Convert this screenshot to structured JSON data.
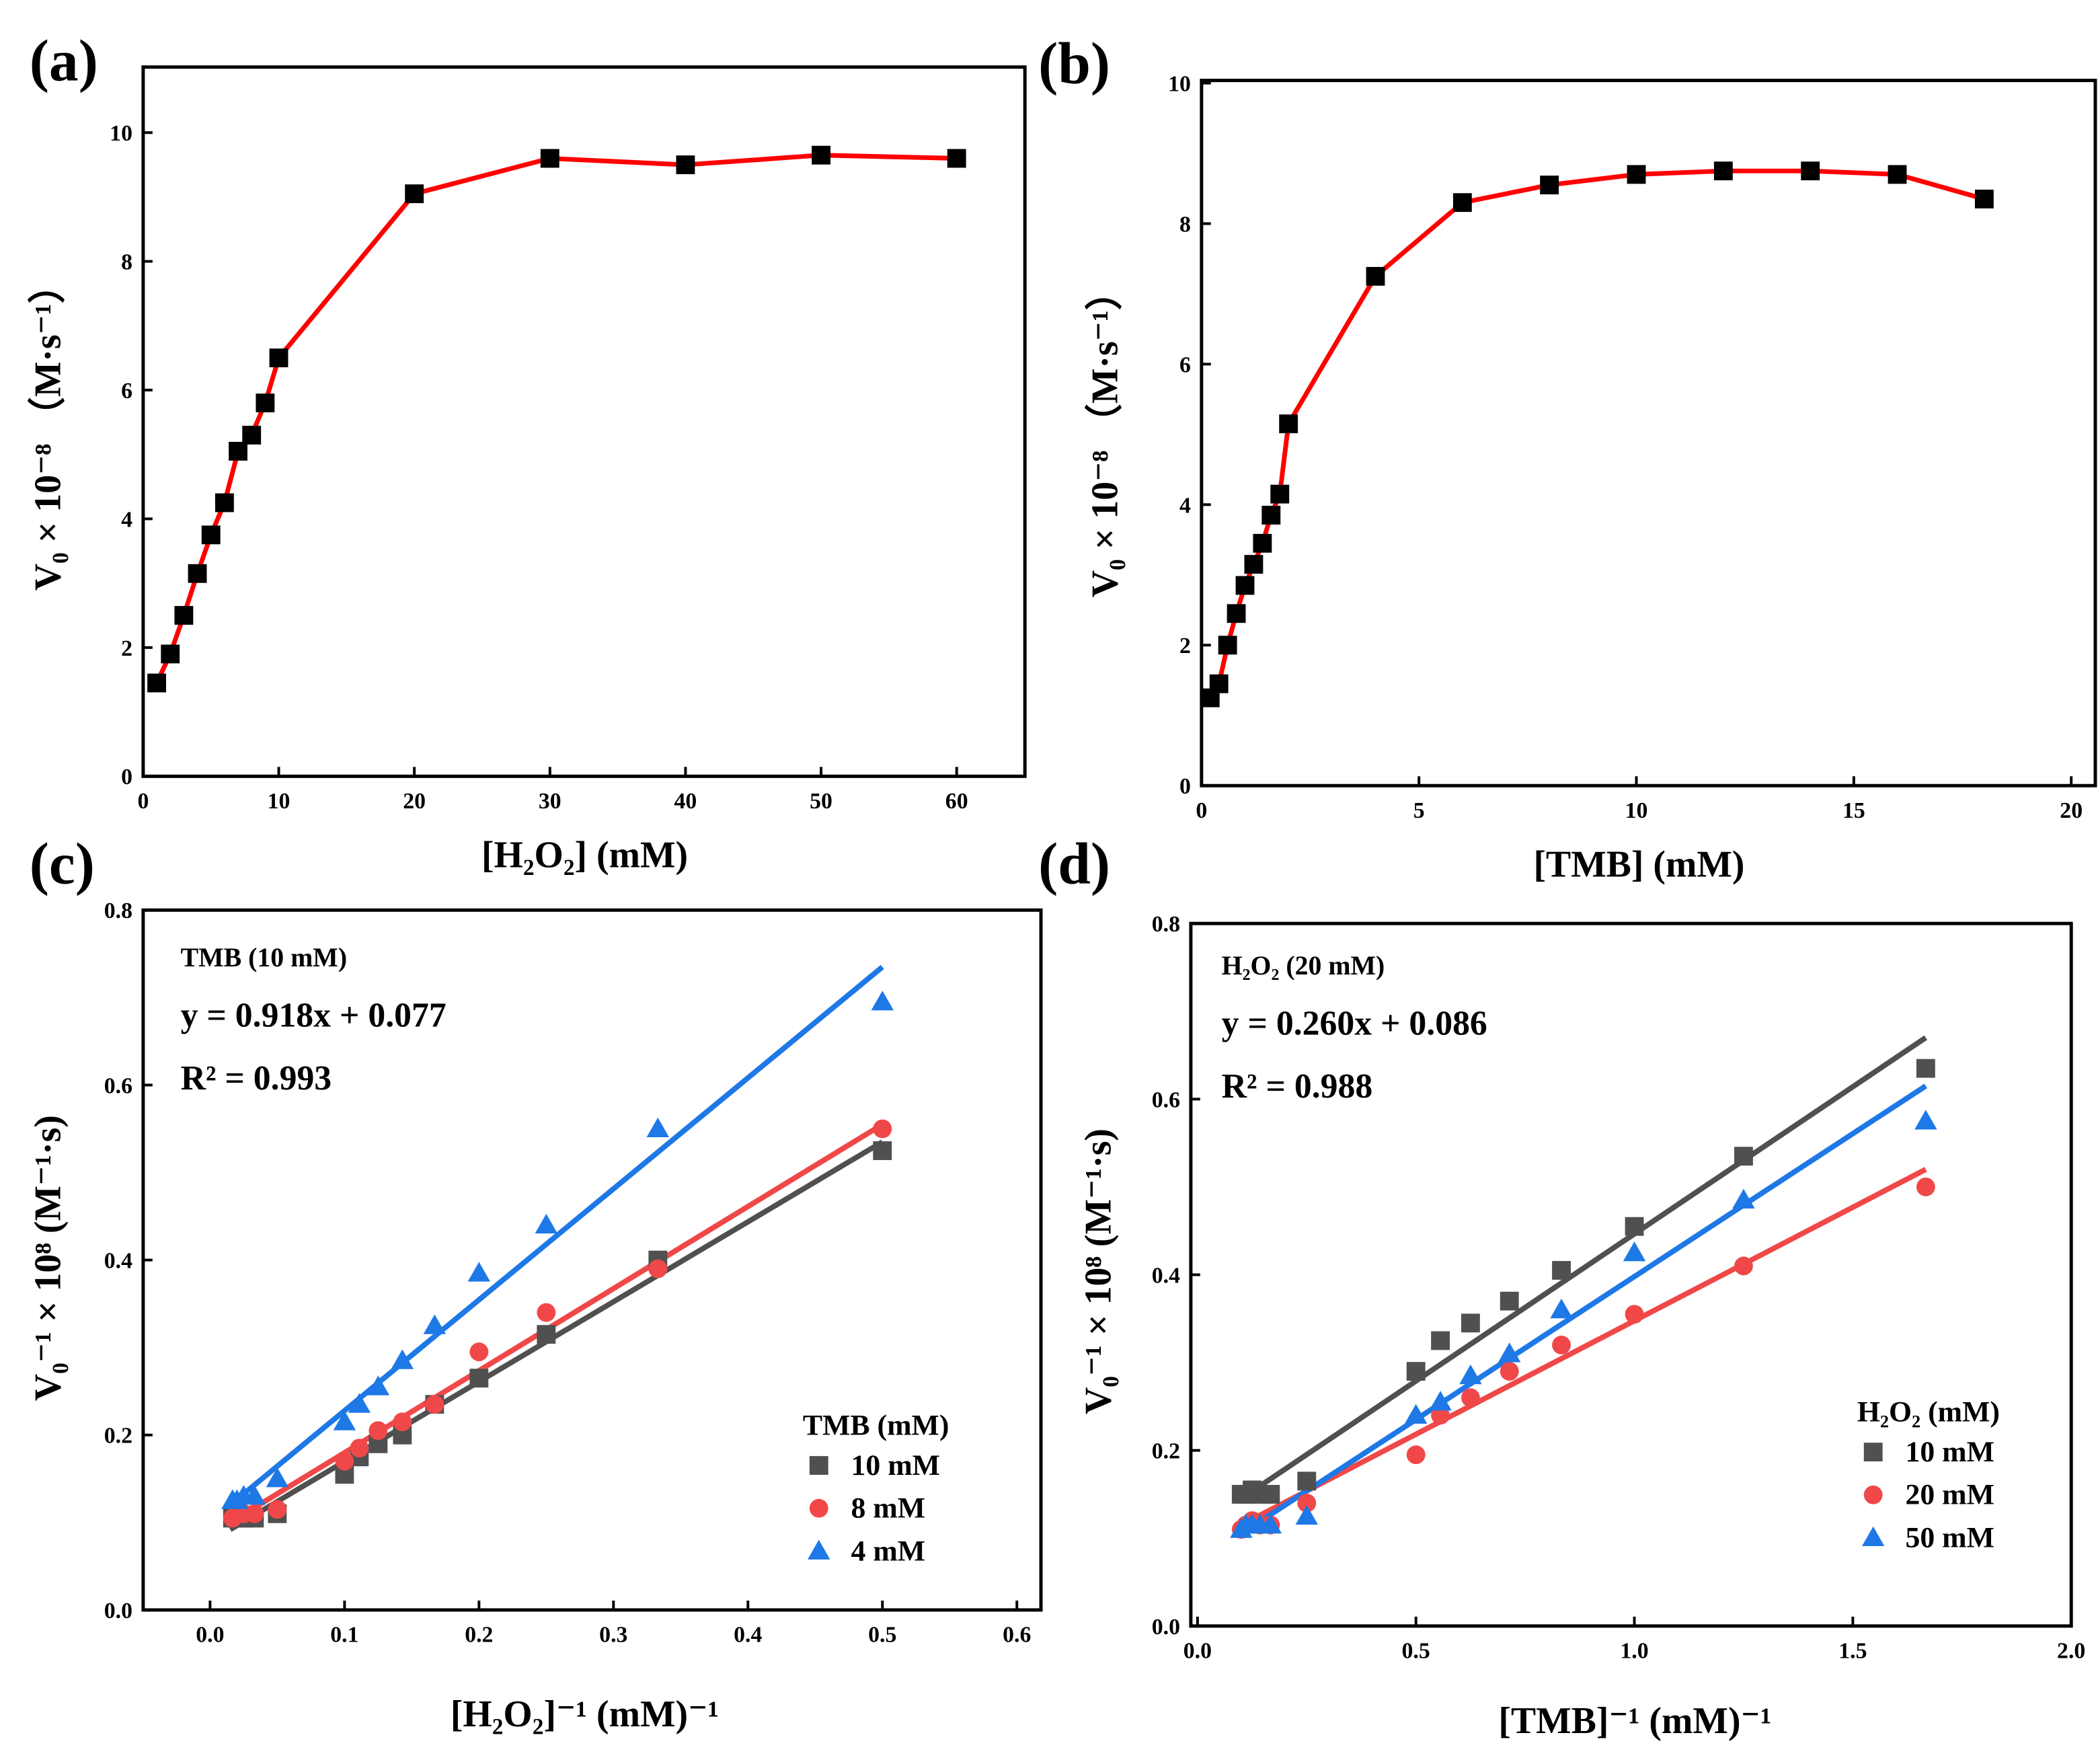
{
  "colors": {
    "red": "#ff0000",
    "gray": "#404040",
    "blue": "#1e78e6",
    "lightred": "#f04848",
    "marker_black": "#000000"
  },
  "chart_data": [
    {
      "panel": "(a)",
      "type": "line",
      "xlabel": "[H₂O₂] (mM)",
      "ylabel": "V₀ × 10⁻⁸ （M·s⁻¹）",
      "xlim": [
        0,
        62
      ],
      "ylim": [
        0,
        10.8
      ],
      "xticks": [
        0,
        10,
        20,
        30,
        40,
        50,
        60
      ],
      "yticks": [
        0,
        2,
        4,
        6,
        8,
        10
      ],
      "series": [
        {
          "name": "V0",
          "color": "#ff0000",
          "marker": "square",
          "x": [
            1,
            2,
            3,
            4,
            5,
            6,
            7,
            8,
            9,
            10,
            20,
            30,
            40,
            50,
            60
          ],
          "y": [
            1.45,
            1.9,
            2.5,
            3.15,
            3.75,
            4.25,
            5.05,
            5.3,
            5.8,
            6.5,
            9.05,
            9.6,
            9.5,
            9.65,
            9.6
          ]
        }
      ]
    },
    {
      "panel": "(b)",
      "type": "line",
      "xlabel": "[TMB] (mM)",
      "ylabel": "V₀ × 10⁻⁸ （M·s⁻¹）",
      "xlim": [
        0,
        20.5
      ],
      "ylim": [
        0,
        10
      ],
      "xticks": [
        0,
        5,
        10,
        15,
        20
      ],
      "yticks": [
        0,
        2,
        4,
        6,
        8,
        10
      ],
      "series": [
        {
          "name": "V0",
          "color": "#ff0000",
          "marker": "square",
          "x": [
            0.2,
            0.4,
            0.6,
            0.8,
            1.0,
            1.2,
            1.4,
            1.6,
            1.8,
            2,
            4,
            6,
            8,
            10,
            12,
            14,
            16,
            18
          ],
          "y": [
            1.25,
            1.45,
            2.0,
            2.45,
            2.85,
            3.15,
            3.45,
            3.85,
            4.15,
            5.15,
            7.25,
            8.3,
            8.55,
            8.7,
            8.75,
            8.75,
            8.7,
            8.35
          ]
        }
      ]
    },
    {
      "panel": "(c)",
      "type": "scatter",
      "xlabel": "[H₂O₂]⁻¹ (mM)⁻¹",
      "ylabel": "V₀⁻¹ × 10⁸ (M⁻¹·s)",
      "xlim": [
        -0.05,
        0.6
      ],
      "ylim": [
        0,
        0.8
      ],
      "xticks": [
        0.0,
        0.1,
        0.2,
        0.3,
        0.4,
        0.5,
        0.6
      ],
      "yticks": [
        0.0,
        0.2,
        0.4,
        0.6,
        0.8
      ],
      "annotation": {
        "condition": "TMB (10 mM)",
        "equation": "y = 0.918x + 0.077",
        "r2": "R² = 0.993"
      },
      "legend_title": "TMB (mM)",
      "x": [
        0.0167,
        0.02,
        0.025,
        0.033,
        0.05,
        0.1,
        0.111,
        0.125,
        0.143,
        0.167,
        0.2,
        0.25,
        0.333,
        0.5
      ],
      "series": [
        {
          "name": "10 mM",
          "color": "#505050",
          "marker": "square",
          "fit": [
            [
              0.015,
              0.092
            ],
            [
              0.5,
              0.535
            ]
          ],
          "y": [
            0.105,
            0.105,
            0.105,
            0.105,
            0.11,
            0.155,
            0.175,
            0.19,
            0.2,
            0.235,
            0.265,
            0.315,
            0.4,
            0.525
          ]
        },
        {
          "name": "8 mM",
          "color": "#f04848",
          "marker": "circle",
          "fit": [
            [
              0.015,
              0.1
            ],
            [
              0.5,
              0.555
            ]
          ],
          "y": [
            0.105,
            0.11,
            0.11,
            0.11,
            0.115,
            0.17,
            0.185,
            0.205,
            0.215,
            0.235,
            0.295,
            0.34,
            0.39,
            0.55
          ]
        },
        {
          "name": "4 mM",
          "color": "#1e78e6",
          "marker": "triangle",
          "fit": [
            [
              0.015,
              0.12
            ],
            [
              0.5,
              0.735
            ]
          ],
          "y": [
            0.125,
            0.125,
            0.13,
            0.13,
            0.15,
            0.215,
            0.235,
            0.255,
            0.285,
            0.325,
            0.385,
            0.44,
            0.55,
            0.695
          ]
        }
      ]
    },
    {
      "panel": "(d)",
      "type": "scatter",
      "xlabel": "[TMB]⁻¹ (mM)⁻¹",
      "ylabel": "V₀⁻¹ × 10⁸ (M⁻¹·s)",
      "xlim": [
        0,
        2.0
      ],
      "ylim": [
        0,
        0.8
      ],
      "xticks": [
        0.0,
        0.5,
        1.0,
        1.5,
        2.0
      ],
      "yticks": [
        0.0,
        0.2,
        0.4,
        0.6,
        0.8
      ],
      "annotation": {
        "condition": "H₂O₂ (20 mM)",
        "equation": "y = 0.260x + 0.086",
        "r2": "R² = 0.988"
      },
      "legend_title": "H₂O₂ (mM)",
      "x": [
        0.1,
        0.111,
        0.125,
        0.143,
        0.167,
        0.25,
        0.5,
        0.556,
        0.625,
        0.714,
        0.833,
        1.0,
        1.25,
        1.667
      ],
      "series": [
        {
          "name": "10 mM",
          "color": "#505050",
          "marker": "square",
          "fit": [
            [
              0.1,
              0.145
            ],
            [
              1.667,
              0.67
            ]
          ],
          "y": [
            0.15,
            0.15,
            0.155,
            0.15,
            0.15,
            0.165,
            0.29,
            0.325,
            0.345,
            0.37,
            0.405,
            0.455,
            0.535,
            0.635
          ]
        },
        {
          "name": "20 mM",
          "color": "#f04848",
          "marker": "circle",
          "fit": [
            [
              0.1,
              0.115
            ],
            [
              1.667,
              0.52
            ]
          ],
          "y": [
            0.11,
            0.115,
            0.12,
            0.115,
            0.115,
            0.14,
            0.195,
            0.24,
            0.26,
            0.29,
            0.32,
            0.355,
            0.41,
            0.5
          ]
        },
        {
          "name": "50 mM",
          "color": "#1e78e6",
          "marker": "triangle",
          "fit": [
            [
              0.1,
              0.105
            ],
            [
              1.667,
              0.615
            ]
          ],
          "y": [
            0.11,
            0.115,
            0.115,
            0.115,
            0.115,
            0.125,
            0.24,
            0.255,
            0.285,
            0.31,
            0.36,
            0.425,
            0.485,
            0.575
          ]
        }
      ]
    }
  ]
}
